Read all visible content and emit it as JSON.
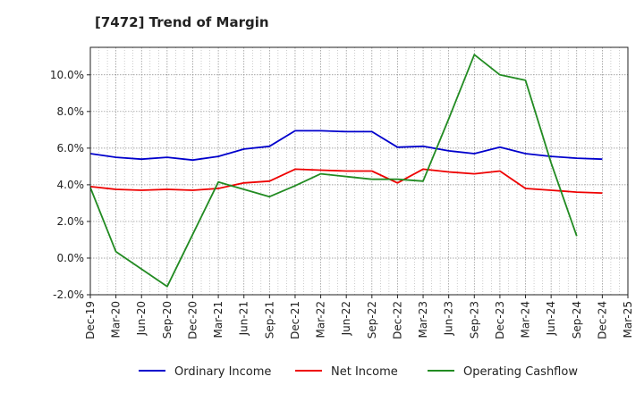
{
  "chart_data": {
    "type": "line",
    "title": "[7472]  Trend of Margin",
    "xlabel": "",
    "ylabel": "",
    "ylim": [
      -2.0,
      11.5
    ],
    "y_ticks": [
      "-2.0%",
      "0.0%",
      "2.0%",
      "4.0%",
      "6.0%",
      "8.0%",
      "10.0%"
    ],
    "y_tick_values": [
      -2,
      0,
      2,
      4,
      6,
      8,
      10
    ],
    "x_tick_labels": [
      "Dec-19",
      "Mar-20",
      "Jun-20",
      "Sep-20",
      "Dec-20",
      "Mar-21",
      "Jun-21",
      "Sep-21",
      "Dec-21",
      "Mar-22",
      "Jun-22",
      "Sep-22",
      "Dec-22",
      "Mar-23",
      "Jun-23",
      "Sep-23",
      "Dec-23",
      "Mar-24",
      "Jun-24",
      "Sep-24",
      "Dec-24",
      "Mar-25"
    ],
    "grid": true,
    "legend_position": "bottom",
    "series": [
      {
        "name": "Ordinary Income",
        "color": "#0000cc",
        "values": [
          5.7,
          5.5,
          5.4,
          5.5,
          5.35,
          5.55,
          5.95,
          6.1,
          6.95,
          6.95,
          6.9,
          6.9,
          6.05,
          6.1,
          5.85,
          5.7,
          6.05,
          5.7,
          5.55,
          5.45,
          5.4,
          null
        ]
      },
      {
        "name": "Net Income",
        "color": "#ee0000",
        "values": [
          3.9,
          3.75,
          3.7,
          3.75,
          3.7,
          3.8,
          4.1,
          4.2,
          4.85,
          4.8,
          4.75,
          4.75,
          4.1,
          4.85,
          4.7,
          4.6,
          4.75,
          3.8,
          3.7,
          3.6,
          3.55,
          null
        ]
      },
      {
        "name": "Operating Cashflow",
        "color": "#228b22",
        "values": [
          3.85,
          0.35,
          -0.6,
          -1.55,
          1.3,
          4.15,
          3.75,
          3.35,
          3.95,
          4.6,
          4.45,
          4.3,
          4.3,
          4.2,
          7.6,
          11.1,
          10.0,
          9.7,
          5.2,
          1.2,
          null,
          null
        ]
      }
    ]
  }
}
